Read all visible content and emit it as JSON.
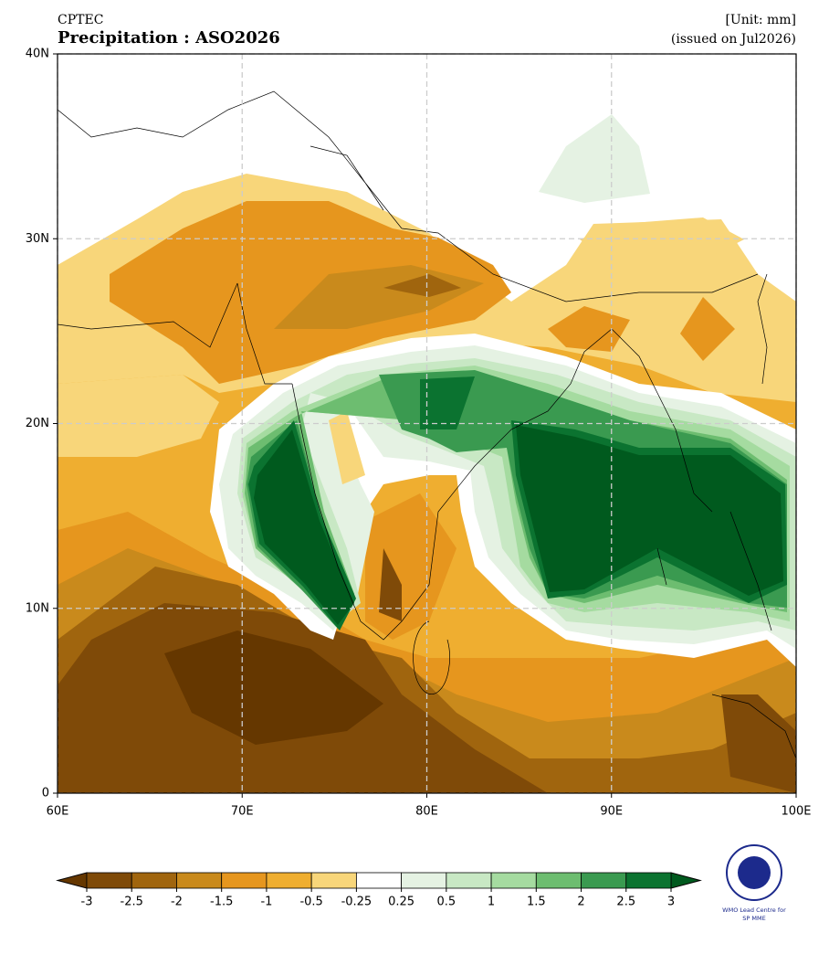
{
  "header": {
    "source": "CPTEC",
    "title": "Precipitation : ASO2026",
    "unit": "[Unit: mm]",
    "issued": "(issued on Jul2026)"
  },
  "map": {
    "xlim": [
      60,
      100
    ],
    "ylim": [
      0,
      40
    ],
    "xticks": [
      {
        "value": 60,
        "label": "60E"
      },
      {
        "value": 70,
        "label": "70E"
      },
      {
        "value": 80,
        "label": "80E"
      },
      {
        "value": 90,
        "label": "90E"
      },
      {
        "value": 100,
        "label": "100E"
      }
    ],
    "yticks": [
      0,
      {
        "value": 10,
        "label": "10N"
      },
      {
        "value": 20,
        "label": "20N"
      },
      {
        "value": 30,
        "label": "30N"
      },
      {
        "value": 40,
        "label": "40N"
      }
    ],
    "grid": true
  },
  "colorbar": {
    "levels": [
      -3,
      -2.5,
      -2,
      -1.5,
      -1,
      -0.5,
      -0.25,
      0.25,
      0.5,
      1,
      1.5,
      2,
      2.5,
      3
    ],
    "colors": [
      "#7f4a08",
      "#a0650e",
      "#c98a1c",
      "#e6961e",
      "#efae30",
      "#f8d67a",
      "#ffffff",
      "#e5f2e3",
      "#c8e8c4",
      "#a5dba0",
      "#6dbd70",
      "#3a9a50",
      "#0b7330"
    ],
    "under_color": "#653700",
    "over_color": "#005a1e"
  },
  "logo": {
    "line1": "WMO Lead Centre for",
    "line2": "SP MME"
  }
}
